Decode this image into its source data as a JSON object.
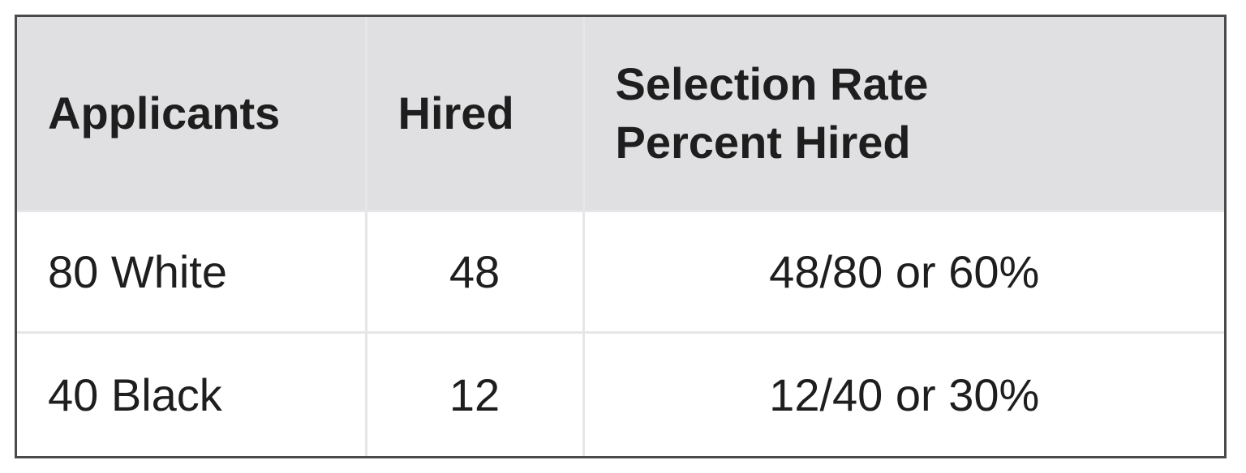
{
  "table": {
    "header": [
      "Applicants",
      "Hired",
      [
        "Selection Rate",
        "Percent Hired"
      ]
    ],
    "rows": [
      [
        "80 White",
        48,
        "48/80 or 60%"
      ],
      [
        "40 Black",
        12,
        "12/40 or 30%"
      ]
    ]
  }
}
